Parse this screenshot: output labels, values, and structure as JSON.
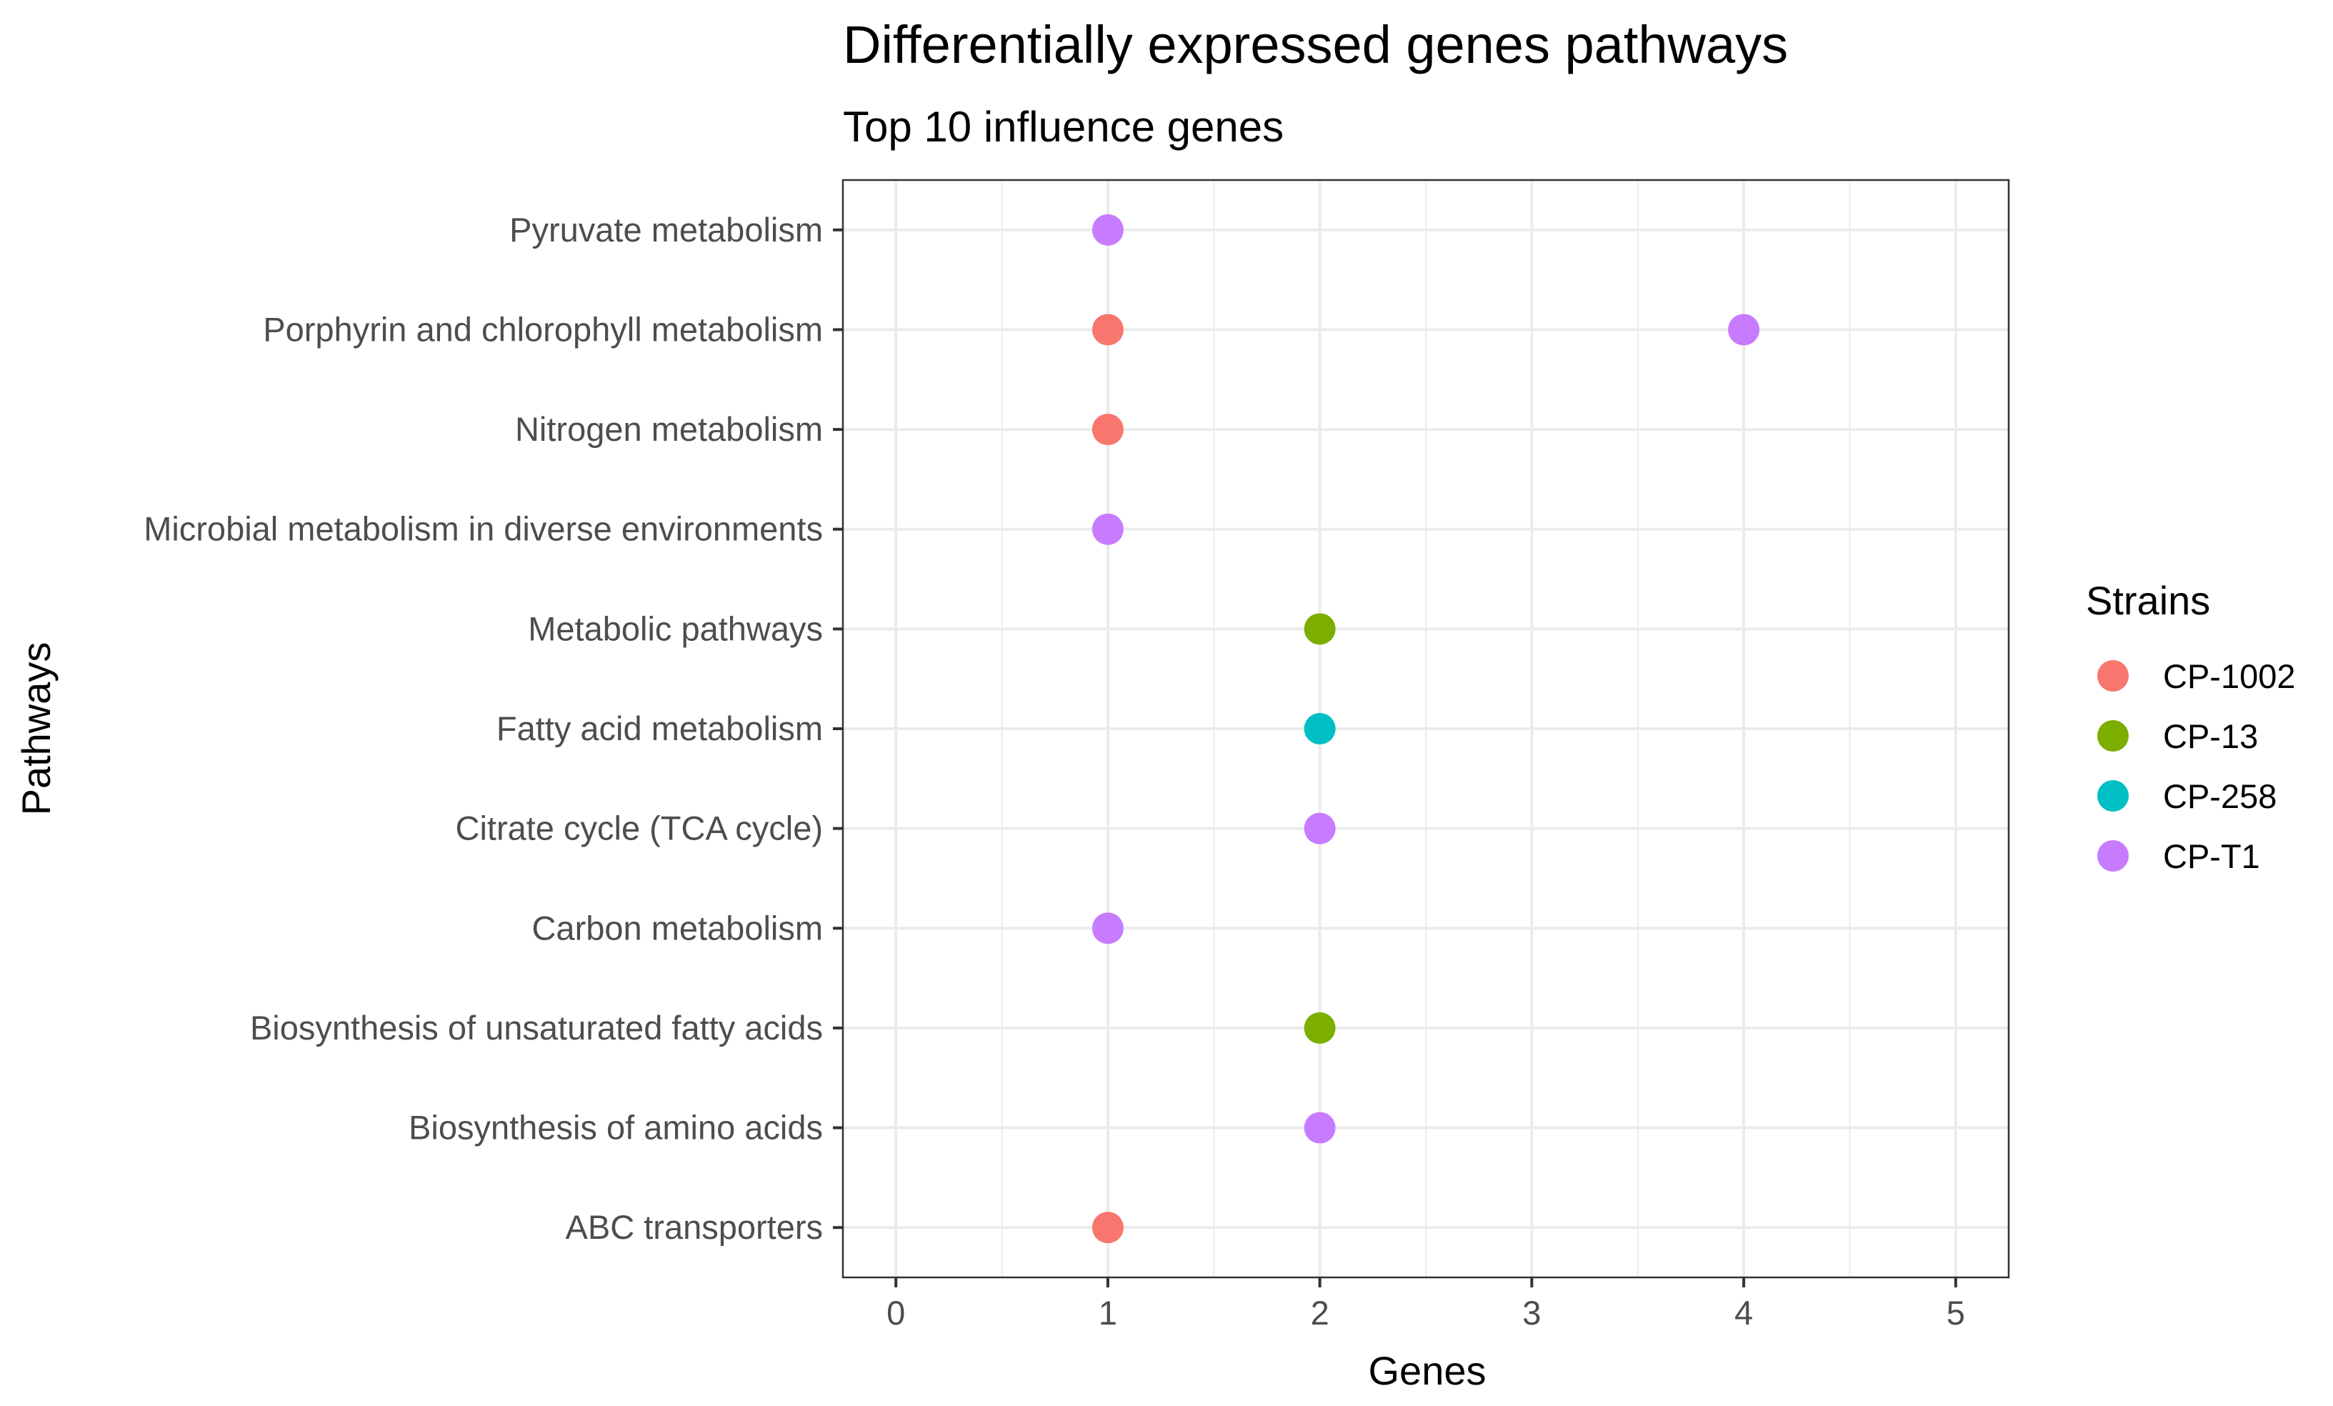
{
  "chart_data": {
    "type": "scatter",
    "title": "Differentially expressed genes pathways",
    "subtitle": "Top 10 influence genes",
    "xlabel": "Genes",
    "ylabel": "Pathways",
    "xlim": [
      -0.25,
      5.25
    ],
    "xticks": [
      0,
      1,
      2,
      3,
      4,
      5
    ],
    "grid": true,
    "legend": {
      "title": "Strains",
      "placement": "right",
      "entries": [
        {
          "name": "CP-1002",
          "color": "#F8766D"
        },
        {
          "name": "CP-13",
          "color": "#7CAE00"
        },
        {
          "name": "CP-258",
          "color": "#00BFC4"
        },
        {
          "name": "CP-T1",
          "color": "#C77CFF"
        }
      ]
    },
    "categories": [
      "ABC transporters",
      "Biosynthesis of amino acids",
      "Biosynthesis of unsaturated fatty acids",
      "Carbon metabolism",
      "Citrate cycle (TCA cycle)",
      "Fatty acid metabolism",
      "Metabolic pathways",
      "Microbial metabolism in diverse environments",
      "Nitrogen metabolism",
      "Porphyrin and chlorophyll metabolism",
      "Pyruvate metabolism"
    ],
    "points": [
      {
        "pathway": "ABC transporters",
        "genes": 1,
        "strain": "CP-1002"
      },
      {
        "pathway": "Biosynthesis of amino acids",
        "genes": 2,
        "strain": "CP-T1"
      },
      {
        "pathway": "Biosynthesis of unsaturated fatty acids",
        "genes": 2,
        "strain": "CP-13"
      },
      {
        "pathway": "Carbon metabolism",
        "genes": 1,
        "strain": "CP-T1"
      },
      {
        "pathway": "Citrate cycle (TCA cycle)",
        "genes": 2,
        "strain": "CP-T1"
      },
      {
        "pathway": "Fatty acid metabolism",
        "genes": 2,
        "strain": "CP-258"
      },
      {
        "pathway": "Metabolic pathways",
        "genes": 2,
        "strain": "CP-13"
      },
      {
        "pathway": "Microbial metabolism in diverse environments",
        "genes": 1,
        "strain": "CP-T1"
      },
      {
        "pathway": "Nitrogen metabolism",
        "genes": 1,
        "strain": "CP-1002"
      },
      {
        "pathway": "Porphyrin and chlorophyll metabolism",
        "genes": 1,
        "strain": "CP-1002"
      },
      {
        "pathway": "Porphyrin and chlorophyll metabolism",
        "genes": 4,
        "strain": "CP-T1"
      },
      {
        "pathway": "Pyruvate metabolism",
        "genes": 1,
        "strain": "CP-T1"
      }
    ]
  }
}
